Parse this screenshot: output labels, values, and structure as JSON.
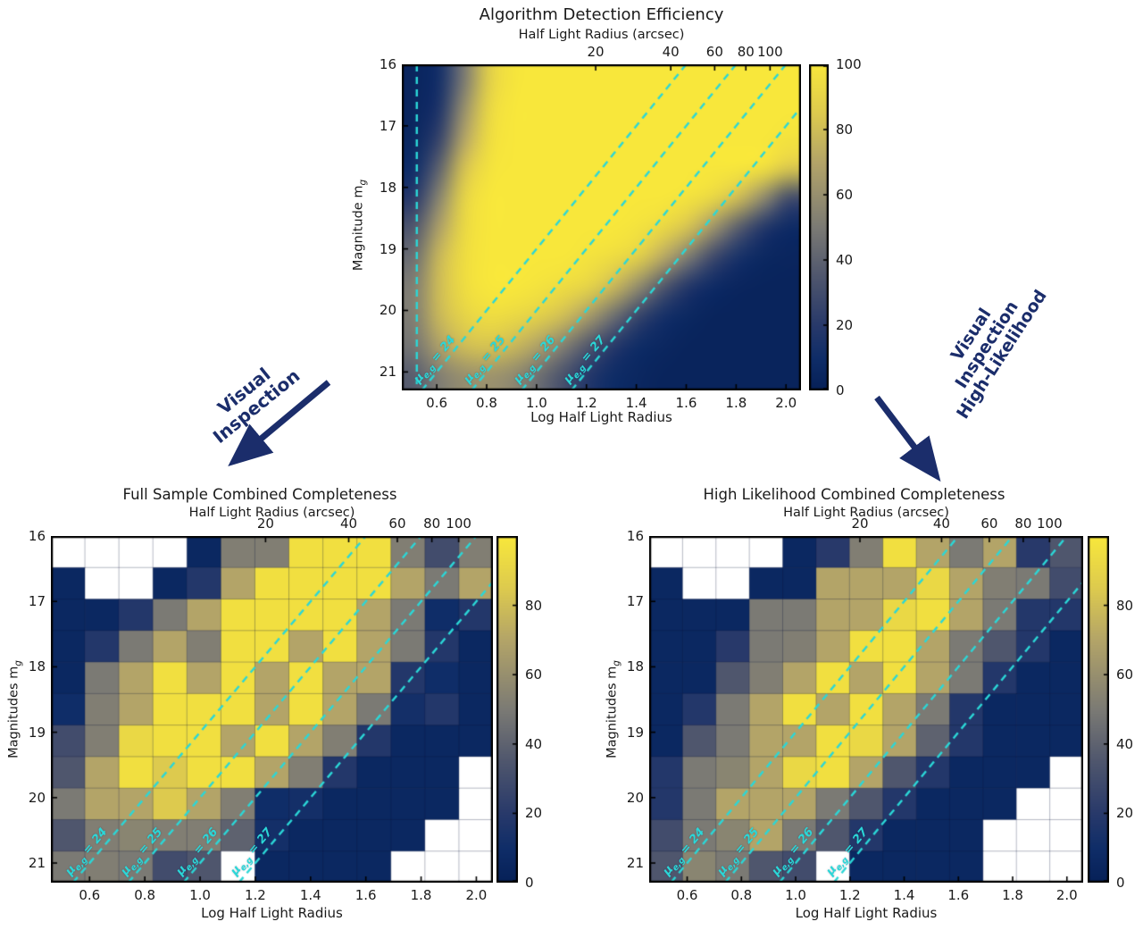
{
  "colors": {
    "background": "#ffffff",
    "cyan_dashed": "#2bd7d7",
    "arrow_navy": "#1b2d6b",
    "spine": "#000000",
    "cell_edge": "rgba(12,24,58,0.30)",
    "missing_cell": "#ffffff",
    "colormap_stops": [
      [
        0,
        "#062057"
      ],
      [
        0.1,
        "#0f2d68"
      ],
      [
        0.2,
        "#28396a"
      ],
      [
        0.35,
        "#4f566d"
      ],
      [
        0.5,
        "#7b7a74"
      ],
      [
        0.7,
        "#b3a468"
      ],
      [
        0.85,
        "#ddca4e"
      ],
      [
        1,
        "#f8e73b"
      ]
    ]
  },
  "annotations": {
    "left_arrow_label": "Visual Inspection",
    "right_arrow_lines": [
      "Visual",
      "Inspection",
      "High-Likelihood"
    ]
  },
  "chart_data": [
    {
      "type": "heatmap",
      "title": "Algorithm Detection Efficiency",
      "top_axis_label": "Half Light Radius (arcsec)",
      "xlabel": "Log Half Light Radius",
      "ylabel_main": "Magnitude m",
      "ylabel_sub": "g",
      "x_range": [
        0.46,
        2.06
      ],
      "y_range": [
        16,
        21.3
      ],
      "x_ticks": [
        0.6,
        0.8,
        1.0,
        1.2,
        1.4,
        1.6,
        1.8,
        2.0
      ],
      "y_ticks": [
        16,
        17,
        18,
        19,
        20,
        21
      ],
      "top_ticks": [
        {
          "label": "20",
          "logr": 1.237
        },
        {
          "label": "40",
          "logr": 1.538
        },
        {
          "label": "60",
          "logr": 1.714
        },
        {
          "label": "80",
          "logr": 1.839
        },
        {
          "label": "100",
          "logr": 1.936
        }
      ],
      "colorbar_ticks": [
        0,
        20,
        40,
        60,
        80,
        100
      ],
      "vertical_line_logr": 0.52,
      "mu_lines": [
        {
          "mu": 24,
          "sym": "μ",
          "sub": "e,g",
          "eq": " = 24"
        },
        {
          "mu": 25,
          "sym": "μ",
          "sub": "e,g",
          "eq": " = 25"
        },
        {
          "mu": 26,
          "sym": "μ",
          "sub": "e,g",
          "eq": " = 26"
        },
        {
          "mu": 27,
          "sym": "μ",
          "sub": "e,g",
          "eq": " = 27"
        }
      ],
      "value_scale": [
        0,
        100
      ],
      "values": [
        [
          4,
          12,
          50,
          88,
          99,
          100,
          100,
          100,
          100,
          100,
          100,
          100,
          100,
          100,
          100,
          100
        ],
        [
          4,
          16,
          60,
          92,
          100,
          100,
          100,
          100,
          100,
          100,
          100,
          100,
          100,
          100,
          100,
          100
        ],
        [
          6,
          25,
          70,
          95,
          100,
          100,
          100,
          100,
          100,
          100,
          100,
          100,
          100,
          100,
          100,
          98
        ],
        [
          10,
          40,
          82,
          98,
          100,
          100,
          100,
          100,
          100,
          100,
          100,
          100,
          100,
          100,
          97,
          85
        ],
        [
          20,
          55,
          90,
          100,
          100,
          100,
          100,
          100,
          100,
          100,
          100,
          98,
          92,
          80,
          58,
          30
        ],
        [
          35,
          68,
          93,
          100,
          100,
          100,
          100,
          100,
          100,
          98,
          93,
          82,
          62,
          38,
          18,
          8
        ],
        [
          45,
          78,
          95,
          100,
          100,
          100,
          100,
          98,
          95,
          88,
          72,
          50,
          28,
          13,
          6,
          4
        ],
        [
          52,
          80,
          95,
          100,
          100,
          98,
          95,
          90,
          78,
          58,
          35,
          17,
          8,
          4,
          3,
          3
        ],
        [
          52,
          78,
          90,
          95,
          93,
          88,
          80,
          65,
          45,
          25,
          12,
          6,
          3,
          3,
          3,
          3
        ],
        [
          48,
          68,
          80,
          83,
          78,
          68,
          52,
          35,
          19,
          9,
          5,
          3,
          3,
          3,
          3,
          3
        ],
        [
          38,
          52,
          60,
          62,
          57,
          45,
          32,
          18,
          9,
          5,
          3,
          3,
          3,
          3,
          3,
          3
        ]
      ]
    },
    {
      "type": "heatmap",
      "title": "Full Sample Combined Completeness",
      "top_axis_label": "Half Light Radius (arcsec)",
      "xlabel": "Log Half Light Radius",
      "ylabel_main": "Magnitudes m",
      "ylabel_sub": "g",
      "x_range": [
        0.46,
        2.06
      ],
      "y_range": [
        16,
        21.3
      ],
      "x_ticks": [
        0.6,
        0.8,
        1.0,
        1.2,
        1.4,
        1.6,
        1.8,
        2.0
      ],
      "y_ticks": [
        16,
        17,
        18,
        19,
        20,
        21
      ],
      "top_ticks": [
        {
          "label": "20",
          "logr": 1.237
        },
        {
          "label": "40",
          "logr": 1.538
        },
        {
          "label": "60",
          "logr": 1.714
        },
        {
          "label": "80",
          "logr": 1.839
        },
        {
          "label": "100",
          "logr": 1.936
        }
      ],
      "colorbar_ticks": [
        0,
        20,
        40,
        60,
        80
      ],
      "vertical_line_logr": null,
      "mu_lines": [
        {
          "mu": 24,
          "sym": "μ",
          "sub": "e,g",
          "eq": " = 24"
        },
        {
          "mu": 25,
          "sym": "μ",
          "sub": "e,g",
          "eq": " = 25"
        },
        {
          "mu": 26,
          "sym": "μ",
          "sub": "e,g",
          "eq": " = 26"
        },
        {
          "mu": 27,
          "sym": "μ",
          "sub": "e,g",
          "eq": " = 27"
        }
      ],
      "value_scale": [
        0,
        100
      ],
      "values": [
        [
          null,
          null,
          null,
          null,
          6,
          52,
          52,
          96,
          96,
          96,
          52,
          30,
          52
        ],
        [
          6,
          null,
          null,
          6,
          18,
          70,
          96,
          96,
          96,
          96,
          70,
          50,
          70
        ],
        [
          6,
          6,
          18,
          50,
          70,
          96,
          96,
          96,
          96,
          70,
          50,
          10,
          18
        ],
        [
          6,
          18,
          50,
          70,
          52,
          96,
          96,
          70,
          96,
          70,
          50,
          18,
          6
        ],
        [
          6,
          50,
          70,
          96,
          70,
          96,
          70,
          96,
          70,
          70,
          18,
          10,
          6
        ],
        [
          10,
          52,
          70,
          96,
          96,
          96,
          70,
          96,
          70,
          50,
          12,
          18,
          6
        ],
        [
          30,
          52,
          92,
          96,
          96,
          70,
          96,
          70,
          52,
          18,
          6,
          6,
          6
        ],
        [
          35,
          70,
          96,
          85,
          96,
          96,
          70,
          52,
          18,
          6,
          6,
          6,
          null
        ],
        [
          50,
          70,
          70,
          85,
          70,
          52,
          10,
          12,
          6,
          6,
          6,
          6,
          null
        ],
        [
          35,
          52,
          55,
          52,
          52,
          40,
          12,
          6,
          6,
          6,
          6,
          null,
          null
        ],
        [
          50,
          52,
          50,
          30,
          35,
          null,
          6,
          6,
          6,
          6,
          null,
          null,
          null
        ]
      ]
    },
    {
      "type": "heatmap",
      "title": "High Likelihood Combined Completeness",
      "top_axis_label": "Half Light Radius (arcsec)",
      "xlabel": "Log Half Light Radius",
      "ylabel_main": "Magnitudes m",
      "ylabel_sub": "g",
      "x_range": [
        0.46,
        2.06
      ],
      "y_range": [
        16,
        21.3
      ],
      "x_ticks": [
        0.6,
        0.8,
        1.0,
        1.2,
        1.4,
        1.6,
        1.8,
        2.0
      ],
      "y_ticks": [
        16,
        17,
        18,
        19,
        20,
        21
      ],
      "top_ticks": [
        {
          "label": "20",
          "logr": 1.237
        },
        {
          "label": "40",
          "logr": 1.538
        },
        {
          "label": "60",
          "logr": 1.714
        },
        {
          "label": "80",
          "logr": 1.839
        },
        {
          "label": "100",
          "logr": 1.936
        }
      ],
      "colorbar_ticks": [
        0,
        20,
        40,
        60,
        80
      ],
      "vertical_line_logr": null,
      "mu_lines": [
        {
          "mu": 24,
          "sym": "μ",
          "sub": "e,g",
          "eq": " = 24"
        },
        {
          "mu": 25,
          "sym": "μ",
          "sub": "e,g",
          "eq": " = 25"
        },
        {
          "mu": 26,
          "sym": "μ",
          "sub": "e,g",
          "eq": " = 26"
        },
        {
          "mu": 27,
          "sym": "μ",
          "sub": "e,g",
          "eq": " = 27"
        }
      ],
      "value_scale": [
        0,
        100
      ],
      "values": [
        [
          null,
          null,
          null,
          null,
          6,
          20,
          52,
          96,
          70,
          50,
          70,
          20,
          35
        ],
        [
          6,
          null,
          null,
          6,
          6,
          70,
          70,
          70,
          92,
          70,
          52,
          50,
          30
        ],
        [
          6,
          6,
          6,
          50,
          50,
          70,
          70,
          92,
          96,
          70,
          50,
          18,
          18
        ],
        [
          6,
          6,
          20,
          50,
          52,
          70,
          96,
          96,
          70,
          50,
          35,
          18,
          6
        ],
        [
          6,
          6,
          35,
          52,
          70,
          96,
          70,
          96,
          70,
          50,
          18,
          6,
          6
        ],
        [
          6,
          18,
          50,
          70,
          96,
          70,
          96,
          70,
          50,
          18,
          6,
          6,
          6
        ],
        [
          6,
          35,
          50,
          70,
          70,
          96,
          92,
          70,
          40,
          18,
          6,
          6,
          6
        ],
        [
          18,
          50,
          55,
          70,
          92,
          96,
          70,
          35,
          18,
          6,
          6,
          6,
          null
        ],
        [
          18,
          50,
          70,
          70,
          70,
          50,
          35,
          18,
          6,
          6,
          6,
          null,
          null
        ],
        [
          30,
          50,
          55,
          70,
          50,
          35,
          18,
          6,
          6,
          6,
          null,
          null,
          null
        ],
        [
          35,
          55,
          50,
          35,
          30,
          null,
          6,
          6,
          6,
          6,
          null,
          null,
          null
        ]
      ]
    }
  ]
}
